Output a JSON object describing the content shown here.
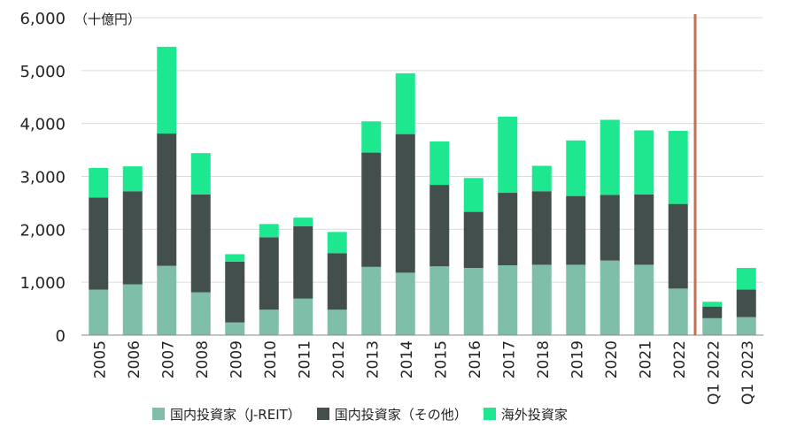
{
  "chart_data": {
    "type": "bar",
    "stacked": true,
    "unit_label": "（十億円）",
    "categories": [
      "2005",
      "2006",
      "2007",
      "2008",
      "2009",
      "2010",
      "2011",
      "2012",
      "2013",
      "2014",
      "2015",
      "2016",
      "2017",
      "2018",
      "2019",
      "2020",
      "2021",
      "2022",
      "Q1 2022",
      "Q1 2023"
    ],
    "series": [
      {
        "name": "国内投資家（J-REIT）",
        "color": "#7fbfaa",
        "values": [
          860,
          960,
          1310,
          810,
          240,
          480,
          690,
          480,
          1290,
          1180,
          1300,
          1270,
          1320,
          1330,
          1330,
          1410,
          1330,
          880,
          320,
          340
        ]
      },
      {
        "name": "国内投資家（その他）",
        "color": "#424f4c",
        "values": [
          1740,
          1760,
          2500,
          1850,
          1150,
          1370,
          1370,
          1070,
          2160,
          2620,
          1540,
          1060,
          1370,
          1390,
          1300,
          1240,
          1330,
          1600,
          220,
          520
        ]
      },
      {
        "name": "海外投資家",
        "color": "#1de88f",
        "values": [
          560,
          470,
          1640,
          780,
          140,
          250,
          160,
          400,
          590,
          1150,
          820,
          640,
          1440,
          480,
          1050,
          1420,
          1210,
          1380,
          90,
          410
        ]
      }
    ],
    "ylim": [
      0,
      6000
    ],
    "yticks": [
      "0",
      "1,000",
      "2,000",
      "3,000",
      "4,000",
      "5,000",
      "6,000"
    ],
    "divider_after_category": "2022",
    "divider_color": "#c0704f",
    "grid": true,
    "legend_position": "bottom"
  }
}
